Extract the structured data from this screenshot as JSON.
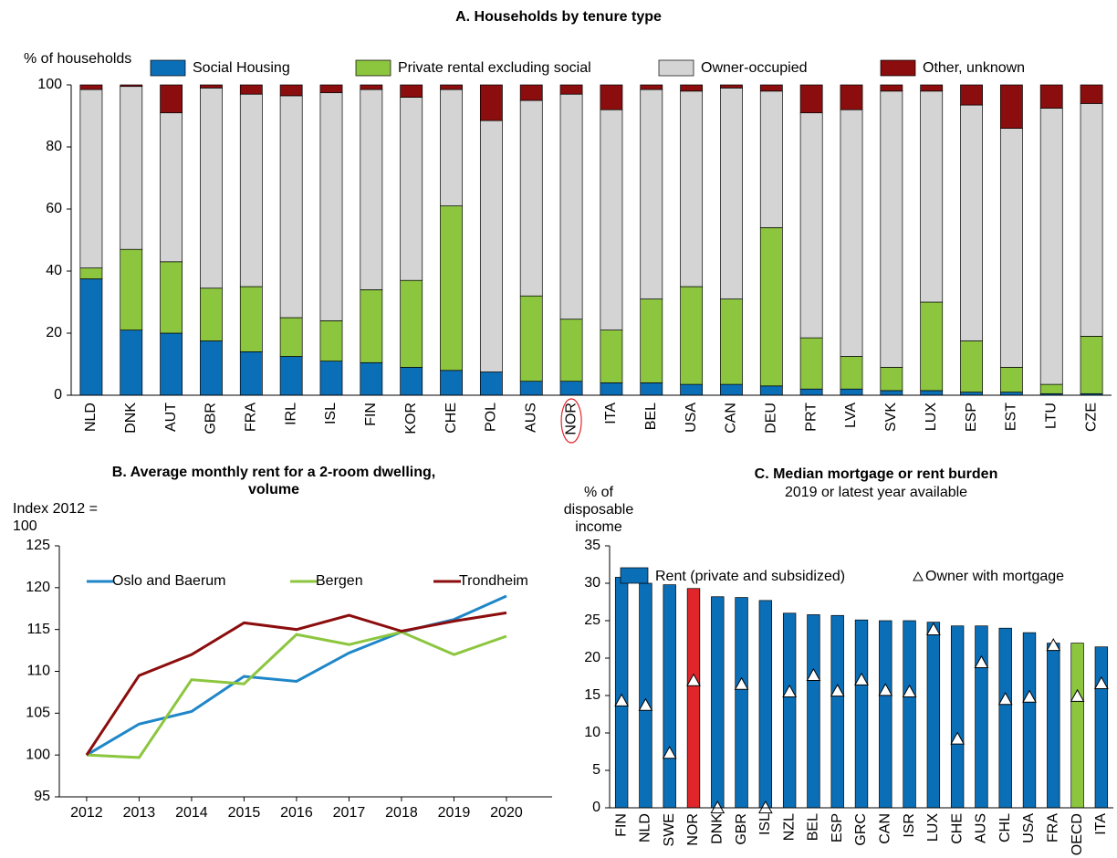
{
  "chart_data": [
    {
      "type": "bar",
      "stacked": true,
      "title": "A. Households by tenure type",
      "ylabel": "% of households",
      "categories": [
        "NLD",
        "DNK",
        "AUT",
        "GBR",
        "FRA",
        "IRL",
        "ISL",
        "FIN",
        "KOR",
        "CHE",
        "POL",
        "AUS",
        "NOR",
        "ITA",
        "BEL",
        "USA",
        "CAN",
        "DEU",
        "PRT",
        "LVA",
        "SVK",
        "LUX",
        "ESP",
        "EST",
        "LTU",
        "CZE"
      ],
      "highlight_categories": [
        "NOR"
      ],
      "series": [
        {
          "name": "Social Housing",
          "color": "#0b6fb8",
          "values": [
            37.5,
            21,
            20,
            17.5,
            14,
            12.5,
            11,
            10.5,
            9,
            8,
            7.5,
            4.5,
            4.5,
            4,
            4,
            3.5,
            3.5,
            3,
            2,
            2,
            1.5,
            1.5,
            1,
            1,
            0.5,
            0.5
          ]
        },
        {
          "name": "Private rental excluding social",
          "color": "#8cc63f",
          "values": [
            3.5,
            26,
            23,
            17,
            21,
            12.5,
            13,
            23.5,
            28,
            53,
            0,
            27.5,
            20,
            17,
            27,
            31.5,
            27.5,
            51,
            16.5,
            10.5,
            7.5,
            28.5,
            16.5,
            8,
            3,
            18.5
          ]
        },
        {
          "name": "Owner-occupied",
          "color": "#d4d4d4",
          "values": [
            57.5,
            52.5,
            48,
            64.5,
            62,
            71.5,
            73.5,
            64.5,
            59,
            37.5,
            81,
            63,
            72.5,
            71,
            67.5,
            63,
            68,
            44,
            72.5,
            79.5,
            89,
            68,
            76,
            77,
            89,
            75
          ]
        },
        {
          "name": "Other, unknown",
          "color": "#8b0d0d",
          "values": [
            1.5,
            0.5,
            9,
            1,
            3,
            3.5,
            2.5,
            1.5,
            4,
            1.5,
            11.5,
            5,
            3,
            8,
            1.5,
            2,
            1,
            2,
            9,
            8,
            2,
            2,
            6.5,
            14,
            7.5,
            6
          ]
        }
      ],
      "ylim": [
        0,
        100
      ],
      "yticks": [
        0,
        20,
        40,
        60,
        80,
        100
      ],
      "grid": false
    },
    {
      "type": "line",
      "title": "B. Average monthly rent for a 2-room dwelling, volume",
      "ylabel": "Index 2012 = 100",
      "x": [
        2012,
        2013,
        2014,
        2015,
        2016,
        2017,
        2018,
        2019,
        2020
      ],
      "series": [
        {
          "name": "Oslo and Baerum",
          "color": "#1f86c8",
          "values": [
            100,
            103.7,
            105.2,
            109.4,
            108.8,
            112.2,
            114.7,
            116.2,
            119
          ]
        },
        {
          "name": "Bergen",
          "color": "#8cc63f",
          "values": [
            100,
            99.7,
            109,
            108.5,
            114.4,
            113.2,
            114.7,
            112,
            114.2
          ]
        },
        {
          "name": "Trondheim",
          "color": "#8b0d0d",
          "values": [
            100,
            109.5,
            112,
            115.8,
            115,
            116.7,
            114.8,
            116,
            117
          ]
        }
      ],
      "xlim": [
        2011.48,
        2020.87
      ],
      "xticks": [
        2012,
        2013,
        2014,
        2015,
        2016,
        2017,
        2018,
        2019,
        2020
      ],
      "ylim": [
        95,
        125
      ],
      "yticks": [
        95,
        100,
        105,
        110,
        115,
        120,
        125
      ],
      "grid": false
    },
    {
      "type": "bar-marker",
      "title": "C. Median mortgage or rent burden",
      "subtitle": "2019 or latest year available",
      "ylabel": "% of disposable income",
      "categories": [
        "FIN",
        "NLD",
        "SWE",
        "NOR",
        "DNK",
        "GBR",
        "ISL",
        "NZL",
        "BEL",
        "ESP",
        "GRC",
        "CAN",
        "ISR",
        "LUX",
        "CHE",
        "AUS",
        "CHL",
        "USA",
        "FRA",
        "OECD",
        "ITA"
      ],
      "series": [
        {
          "name": "Rent (private and subsidized)",
          "color": "#0b6fb8",
          "colors": [
            "#0b6fb8",
            "#0b6fb8",
            "#0b6fb8",
            "#e0262b",
            "#0b6fb8",
            "#0b6fb8",
            "#0b6fb8",
            "#0b6fb8",
            "#0b6fb8",
            "#0b6fb8",
            "#0b6fb8",
            "#0b6fb8",
            "#0b6fb8",
            "#0b6fb8",
            "#0b6fb8",
            "#0b6fb8",
            "#0b6fb8",
            "#0b6fb8",
            "#0b6fb8",
            "#8cc63f",
            "#0b6fb8"
          ],
          "values": [
            30.8,
            30,
            29.8,
            29.3,
            28.2,
            28.1,
            27.7,
            26,
            25.8,
            25.7,
            25.1,
            25,
            25,
            24.8,
            24.3,
            24.3,
            24,
            23.4,
            22,
            22,
            21.5
          ]
        },
        {
          "name": "Owner with mortgage",
          "color": "#ffffff",
          "marker": "triangle",
          "values": [
            14.3,
            13.7,
            7.3,
            17,
            0,
            16.5,
            0,
            15.5,
            17.7,
            15.6,
            17.1,
            15.7,
            15.5,
            23.8,
            9.2,
            19.4,
            14.5,
            14.8,
            21.7,
            14.9,
            16.6
          ]
        }
      ],
      "ylim": [
        0,
        35
      ],
      "yticks": [
        0,
        5,
        10,
        15,
        20,
        25,
        30,
        35
      ],
      "grid": false
    }
  ]
}
